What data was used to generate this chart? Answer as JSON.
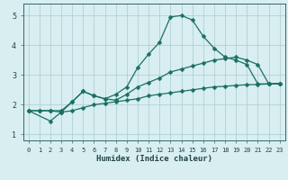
{
  "bg_color": "#d8eef0",
  "grid_color": "#aacccc",
  "line_color": "#1a7060",
  "line1": {
    "x": [
      0,
      1,
      2,
      3,
      4,
      5,
      6,
      7,
      8,
      9,
      10,
      11,
      12,
      13,
      14,
      15,
      16,
      17,
      18,
      19,
      20,
      21,
      22,
      23
    ],
    "y": [
      1.8,
      1.8,
      1.8,
      1.75,
      2.1,
      2.45,
      2.3,
      2.2,
      2.35,
      2.6,
      3.25,
      3.7,
      4.1,
      4.95,
      5.0,
      4.85,
      4.3,
      3.9,
      3.6,
      3.5,
      3.35,
      2.7,
      2.7,
      2.7
    ]
  },
  "line2": {
    "x": [
      0,
      1,
      2,
      3,
      4,
      5,
      6,
      7,
      8,
      9,
      10,
      11,
      12,
      13,
      14,
      15,
      16,
      17,
      18,
      19,
      20,
      21,
      22,
      23
    ],
    "y": [
      1.8,
      1.8,
      1.8,
      1.8,
      2.1,
      2.45,
      2.3,
      2.2,
      2.15,
      2.35,
      2.6,
      2.75,
      2.9,
      3.1,
      3.2,
      3.3,
      3.4,
      3.5,
      3.55,
      3.6,
      3.5,
      3.35,
      2.7,
      2.7
    ]
  },
  "line3": {
    "x": [
      0,
      2,
      3,
      4,
      5,
      6,
      7,
      8,
      9,
      10,
      11,
      12,
      13,
      14,
      15,
      16,
      17,
      18,
      19,
      20,
      21,
      22,
      23
    ],
    "y": [
      1.8,
      1.45,
      1.75,
      1.8,
      1.9,
      2.0,
      2.05,
      2.1,
      2.15,
      2.2,
      2.3,
      2.35,
      2.4,
      2.45,
      2.5,
      2.55,
      2.6,
      2.62,
      2.65,
      2.67,
      2.68,
      2.7,
      2.72
    ]
  },
  "xlabel": "Humidex (Indice chaleur)",
  "xlim": [
    -0.5,
    23.5
  ],
  "ylim": [
    0.8,
    5.4
  ],
  "yticks": [
    1,
    2,
    3,
    4,
    5
  ],
  "xticks": [
    0,
    1,
    2,
    3,
    4,
    5,
    6,
    7,
    8,
    9,
    10,
    11,
    12,
    13,
    14,
    15,
    16,
    17,
    18,
    19,
    20,
    21,
    22,
    23
  ],
  "markersize": 2.5,
  "linewidth": 0.9
}
